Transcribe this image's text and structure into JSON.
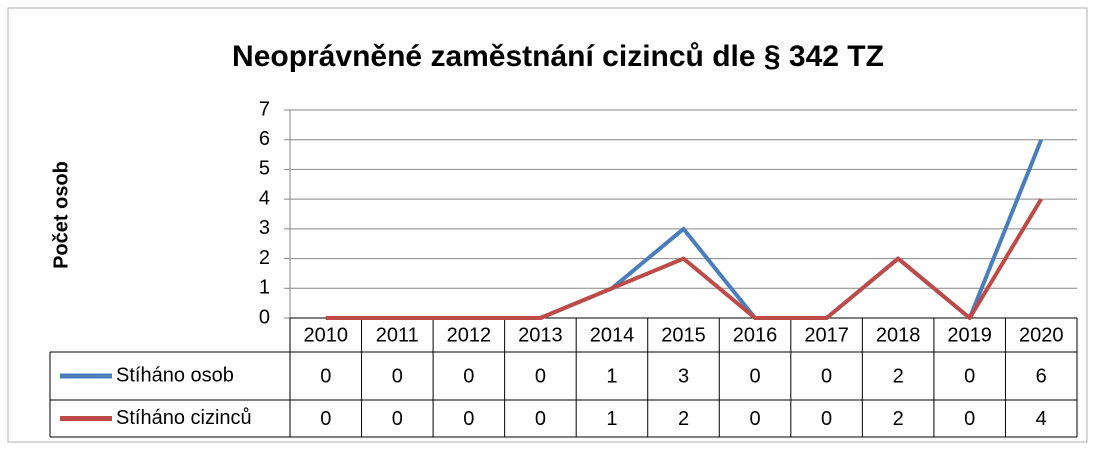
{
  "chart_data": {
    "type": "line",
    "title": "Neoprávněné zaměstnání cizinců dle § 342 TZ",
    "y_label": "Počet osob",
    "categories": [
      "2010",
      "2011",
      "2012",
      "2013",
      "2014",
      "2015",
      "2016",
      "2017",
      "2018",
      "2019",
      "2020"
    ],
    "series": [
      {
        "name": "Stíháno osob",
        "color": "#4a7ebb",
        "values": [
          0,
          0,
          0,
          0,
          1,
          3,
          0,
          0,
          2,
          0,
          6
        ]
      },
      {
        "name": "Stíháno cizinců",
        "color": "#be4b48",
        "values": [
          0,
          0,
          0,
          0,
          1,
          2,
          0,
          0,
          2,
          0,
          4
        ]
      }
    ],
    "ylim": [
      0,
      7
    ],
    "yticks": [
      0,
      1,
      2,
      3,
      4,
      5,
      6,
      7
    ],
    "grid": true,
    "data_table": true
  }
}
